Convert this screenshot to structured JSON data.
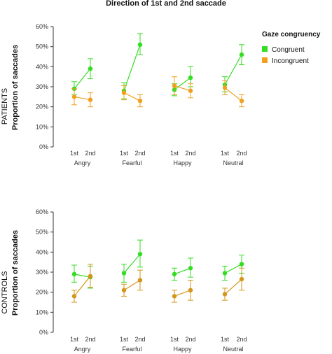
{
  "figure": {
    "title": "Direction of 1st and 2nd saccade",
    "legend": {
      "title": "Gaze congruency",
      "entries": [
        {
          "label": "Congruent",
          "color": "#33dd22"
        },
        {
          "label": "Incongruent",
          "color": "#f0a020"
        }
      ]
    }
  },
  "chart_data": [
    {
      "type": "line",
      "panel": "PATIENTS",
      "ylabel_group": "PATIENTS",
      "ylabel": "Proportion of saccades",
      "ylim": [
        0,
        60
      ],
      "yticks": [
        "0%",
        "10%",
        "20%",
        "30%",
        "40%",
        "50%",
        "60%"
      ],
      "ytick_values": [
        0,
        10,
        20,
        30,
        40,
        50,
        60
      ],
      "groups": [
        "Angry",
        "Fearful",
        "Happy",
        "Neutral"
      ],
      "x": [
        "1st",
        "2nd"
      ],
      "series": [
        {
          "name": "Congruent",
          "color": "#33dd22",
          "points": [
            {
              "group": "Angry",
              "values": [
                29,
                39
              ],
              "err_low": [
                26,
                34
              ],
              "err_high": [
                32.5,
                44
              ]
            },
            {
              "group": "Fearful",
              "values": [
                28,
                51
              ],
              "err_low": [
                24,
                46
              ],
              "err_high": [
                32,
                56.5
              ]
            },
            {
              "group": "Happy",
              "values": [
                28.5,
                34.5
              ],
              "err_low": [
                25.5,
                30
              ],
              "err_high": [
                31.5,
                40
              ]
            },
            {
              "group": "Neutral",
              "values": [
                31,
                46
              ],
              "err_low": [
                27.5,
                41
              ],
              "err_high": [
                35,
                51
              ]
            }
          ]
        },
        {
          "name": "Incongruent",
          "color": "#f0a020",
          "points": [
            {
              "group": "Angry",
              "values": [
                25,
                23.5
              ],
              "err_low": [
                21,
                20
              ],
              "err_high": [
                29,
                27
              ]
            },
            {
              "group": "Fearful",
              "values": [
                27,
                23
              ],
              "err_low": [
                23.5,
                20
              ],
              "err_high": [
                30.5,
                26
              ]
            },
            {
              "group": "Happy",
              "values": [
                30.5,
                28
              ],
              "err_low": [
                26,
                24.5
              ],
              "err_high": [
                35,
                31.5
              ]
            },
            {
              "group": "Neutral",
              "values": [
                29.5,
                23
              ],
              "err_low": [
                26,
                20
              ],
              "err_high": [
                33,
                26
              ]
            }
          ]
        }
      ]
    },
    {
      "type": "line",
      "panel": "CONTROLS",
      "ylabel_group": "CONTROLS",
      "ylabel": "Proportion of saccades",
      "ylim": [
        0,
        60
      ],
      "yticks": [
        "0%",
        "10%",
        "20%",
        "30%",
        "40%",
        "50%",
        "60%"
      ],
      "ytick_values": [
        0,
        10,
        20,
        30,
        40,
        50,
        60
      ],
      "groups": [
        "Angry",
        "Fearful",
        "Happy",
        "Neutral"
      ],
      "x": [
        "1st",
        "2nd"
      ],
      "series": [
        {
          "name": "Congruent",
          "color": "#33dd22",
          "points": [
            {
              "group": "Angry",
              "values": [
                29,
                27.5
              ],
              "err_low": [
                25,
                22
              ],
              "err_high": [
                33.5,
                33
              ]
            },
            {
              "group": "Fearful",
              "values": [
                29.5,
                39
              ],
              "err_low": [
                25,
                32.5
              ],
              "err_high": [
                34,
                46
              ]
            },
            {
              "group": "Happy",
              "values": [
                29,
                32
              ],
              "err_low": [
                26,
                27.5
              ],
              "err_high": [
                32,
                37
              ]
            },
            {
              "group": "Neutral",
              "values": [
                29.5,
                34
              ],
              "err_low": [
                26,
                29.5
              ],
              "err_high": [
                33,
                38.5
              ]
            }
          ]
        },
        {
          "name": "Incongruent",
          "color": "#d4961a",
          "points": [
            {
              "group": "Angry",
              "values": [
                18,
                28
              ],
              "err_low": [
                15,
                22.5
              ],
              "err_high": [
                21,
                34
              ]
            },
            {
              "group": "Fearful",
              "values": [
                21,
                26
              ],
              "err_low": [
                18,
                21
              ],
              "err_high": [
                24,
                31
              ]
            },
            {
              "group": "Happy",
              "values": [
                18,
                21
              ],
              "err_low": [
                15,
                16
              ],
              "err_high": [
                21,
                26
              ]
            },
            {
              "group": "Neutral",
              "values": [
                19,
                26.5
              ],
              "err_low": [
                16,
                21
              ],
              "err_high": [
                22,
                32
              ]
            }
          ]
        }
      ]
    }
  ]
}
